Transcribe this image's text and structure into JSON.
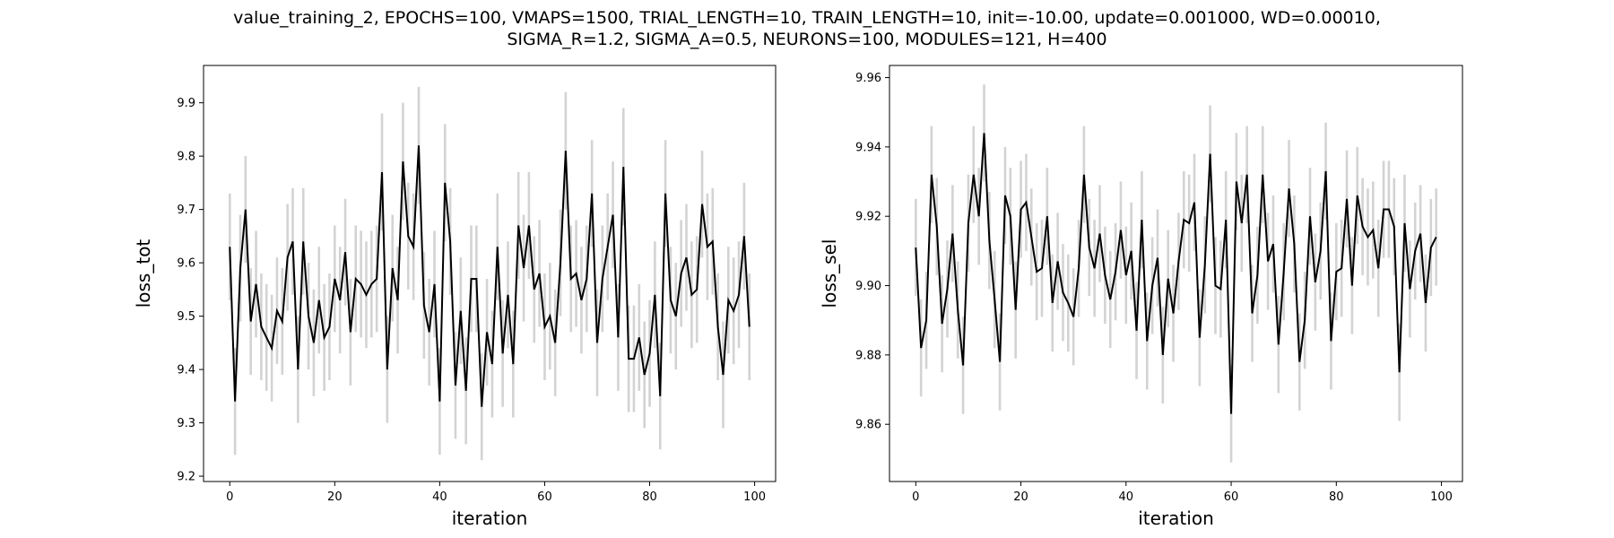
{
  "figure": {
    "title_line1": "value_training_2, EPOCHS=100, VMAPS=1500, TRIAL_LENGTH=10, TRAIN_LENGTH=10, init=-10.00, update=0.001000, WD=0.00010,",
    "title_line2": "SIGMA_R=1.2, SIGMA_A=0.5, NEURONS=100, MODULES=121, H=400"
  },
  "colors": {
    "line": "#000000",
    "errorbar": "#d3d3d3",
    "axes": "#000000",
    "background": "#ffffff"
  },
  "chart_data": [
    {
      "type": "line",
      "xlabel": "iteration",
      "ylabel": "loss_tot",
      "xlim": [
        -5,
        104
      ],
      "ylim": [
        9.19,
        9.97
      ],
      "xticks": [
        0,
        20,
        40,
        60,
        80,
        100
      ],
      "yticks": [
        9.2,
        9.3,
        9.4,
        9.5,
        9.6,
        9.7,
        9.8,
        9.9
      ],
      "x": [
        0,
        1,
        2,
        3,
        4,
        5,
        6,
        7,
        8,
        9,
        10,
        11,
        12,
        13,
        14,
        15,
        16,
        17,
        18,
        19,
        20,
        21,
        22,
        23,
        24,
        25,
        26,
        27,
        28,
        29,
        30,
        31,
        32,
        33,
        34,
        35,
        36,
        37,
        38,
        39,
        40,
        41,
        42,
        43,
        44,
        45,
        46,
        47,
        48,
        49,
        50,
        51,
        52,
        53,
        54,
        55,
        56,
        57,
        58,
        59,
        60,
        61,
        62,
        63,
        64,
        65,
        66,
        67,
        68,
        69,
        70,
        71,
        72,
        73,
        74,
        75,
        76,
        77,
        78,
        79,
        80,
        81,
        82,
        83,
        84,
        85,
        86,
        87,
        88,
        89,
        90,
        91,
        92,
        93,
        94,
        95,
        96,
        97,
        98,
        99
      ],
      "y": [
        9.63,
        9.34,
        9.59,
        9.7,
        9.49,
        9.56,
        9.48,
        9.46,
        9.44,
        9.51,
        9.49,
        9.61,
        9.64,
        9.4,
        9.64,
        9.5,
        9.45,
        9.53,
        9.46,
        9.48,
        9.57,
        9.53,
        9.62,
        9.47,
        9.57,
        9.56,
        9.54,
        9.56,
        9.57,
        9.77,
        9.4,
        9.59,
        9.53,
        9.79,
        9.65,
        9.63,
        9.82,
        9.52,
        9.47,
        9.56,
        9.34,
        9.75,
        9.64,
        9.37,
        9.51,
        9.36,
        9.57,
        9.57,
        9.33,
        9.47,
        9.41,
        9.63,
        9.43,
        9.54,
        9.41,
        9.67,
        9.59,
        9.67,
        9.55,
        9.58,
        9.48,
        9.5,
        9.45,
        9.6,
        9.81,
        9.57,
        9.58,
        9.53,
        9.57,
        9.73,
        9.45,
        9.57,
        9.63,
        9.69,
        9.46,
        9.78,
        9.42,
        9.42,
        9.46,
        9.39,
        9.43,
        9.54,
        9.35,
        9.73,
        9.53,
        9.5,
        9.58,
        9.61,
        9.54,
        9.55,
        9.71,
        9.63,
        9.64,
        9.48,
        9.39,
        9.53,
        9.51,
        9.54,
        9.65,
        9.48
      ],
      "err": [
        0.1,
        0.1,
        0.1,
        0.1,
        0.1,
        0.1,
        0.1,
        0.1,
        0.1,
        0.1,
        0.1,
        0.1,
        0.1,
        0.1,
        0.1,
        0.1,
        0.1,
        0.1,
        0.1,
        0.1,
        0.1,
        0.1,
        0.1,
        0.1,
        0.1,
        0.1,
        0.1,
        0.1,
        0.1,
        0.11,
        0.1,
        0.1,
        0.1,
        0.11,
        0.1,
        0.1,
        0.11,
        0.1,
        0.1,
        0.1,
        0.1,
        0.11,
        0.1,
        0.1,
        0.1,
        0.1,
        0.1,
        0.1,
        0.1,
        0.1,
        0.1,
        0.1,
        0.1,
        0.1,
        0.1,
        0.1,
        0.1,
        0.1,
        0.1,
        0.1,
        0.1,
        0.1,
        0.1,
        0.1,
        0.11,
        0.1,
        0.1,
        0.1,
        0.1,
        0.1,
        0.1,
        0.1,
        0.1,
        0.1,
        0.1,
        0.11,
        0.1,
        0.1,
        0.1,
        0.1,
        0.1,
        0.1,
        0.1,
        0.1,
        0.1,
        0.1,
        0.1,
        0.1,
        0.1,
        0.1,
        0.1,
        0.1,
        0.1,
        0.1,
        0.1,
        0.1,
        0.1,
        0.1,
        0.1,
        0.1
      ]
    },
    {
      "type": "line",
      "xlabel": "iteration",
      "ylabel": "loss_sel",
      "xlim": [
        -5,
        104
      ],
      "ylim": [
        9.8435,
        9.9635
      ],
      "xticks": [
        0,
        20,
        40,
        60,
        80,
        100
      ],
      "yticks": [
        9.86,
        9.88,
        9.9,
        9.92,
        9.94,
        9.96
      ],
      "x": [
        0,
        1,
        2,
        3,
        4,
        5,
        6,
        7,
        8,
        9,
        10,
        11,
        12,
        13,
        14,
        15,
        16,
        17,
        18,
        19,
        20,
        21,
        22,
        23,
        24,
        25,
        26,
        27,
        28,
        29,
        30,
        31,
        32,
        33,
        34,
        35,
        36,
        37,
        38,
        39,
        40,
        41,
        42,
        43,
        44,
        45,
        46,
        47,
        48,
        49,
        50,
        51,
        52,
        53,
        54,
        55,
        56,
        57,
        58,
        59,
        60,
        61,
        62,
        63,
        64,
        65,
        66,
        67,
        68,
        69,
        70,
        71,
        72,
        73,
        74,
        75,
        76,
        77,
        78,
        79,
        80,
        81,
        82,
        83,
        84,
        85,
        86,
        87,
        88,
        89,
        90,
        91,
        92,
        93,
        94,
        95,
        96,
        97,
        98,
        99
      ],
      "y": [
        9.911,
        9.882,
        9.89,
        9.932,
        9.917,
        9.889,
        9.899,
        9.915,
        9.893,
        9.877,
        9.918,
        9.932,
        9.92,
        9.944,
        9.913,
        9.896,
        9.878,
        9.926,
        9.92,
        9.893,
        9.922,
        9.924,
        9.914,
        9.904,
        9.905,
        9.92,
        9.895,
        9.907,
        9.898,
        9.895,
        9.891,
        9.905,
        9.932,
        9.911,
        9.905,
        9.915,
        9.903,
        9.896,
        9.904,
        9.916,
        9.903,
        9.91,
        9.887,
        9.919,
        9.884,
        9.9,
        9.908,
        9.88,
        9.902,
        9.892,
        9.907,
        9.919,
        9.918,
        9.924,
        9.885,
        9.906,
        9.938,
        9.9,
        9.899,
        9.919,
        9.863,
        9.93,
        9.918,
        9.932,
        9.892,
        9.903,
        9.932,
        9.907,
        9.912,
        9.883,
        9.904,
        9.928,
        9.912,
        9.878,
        9.89,
        9.92,
        9.901,
        9.91,
        9.933,
        9.884,
        9.904,
        9.905,
        9.925,
        9.9,
        9.926,
        9.917,
        9.914,
        9.916,
        9.905,
        9.922,
        9.922,
        9.917,
        9.875,
        9.918,
        9.899,
        9.91,
        9.915,
        9.895,
        9.911,
        9.914
      ],
      "err": [
        0.014,
        0.014,
        0.014,
        0.014,
        0.014,
        0.014,
        0.014,
        0.014,
        0.014,
        0.014,
        0.014,
        0.014,
        0.014,
        0.014,
        0.014,
        0.014,
        0.014,
        0.014,
        0.014,
        0.014,
        0.014,
        0.014,
        0.014,
        0.014,
        0.014,
        0.014,
        0.014,
        0.014,
        0.014,
        0.014,
        0.014,
        0.014,
        0.014,
        0.014,
        0.014,
        0.014,
        0.014,
        0.014,
        0.014,
        0.014,
        0.014,
        0.014,
        0.014,
        0.014,
        0.014,
        0.014,
        0.014,
        0.014,
        0.014,
        0.014,
        0.014,
        0.014,
        0.014,
        0.014,
        0.014,
        0.014,
        0.014,
        0.014,
        0.014,
        0.014,
        0.014,
        0.014,
        0.014,
        0.014,
        0.014,
        0.014,
        0.014,
        0.014,
        0.014,
        0.014,
        0.014,
        0.014,
        0.014,
        0.014,
        0.014,
        0.014,
        0.014,
        0.014,
        0.014,
        0.014,
        0.014,
        0.014,
        0.014,
        0.014,
        0.014,
        0.014,
        0.014,
        0.014,
        0.014,
        0.014,
        0.014,
        0.014,
        0.014,
        0.014,
        0.014,
        0.014,
        0.014,
        0.014,
        0.014,
        0.014
      ]
    }
  ]
}
